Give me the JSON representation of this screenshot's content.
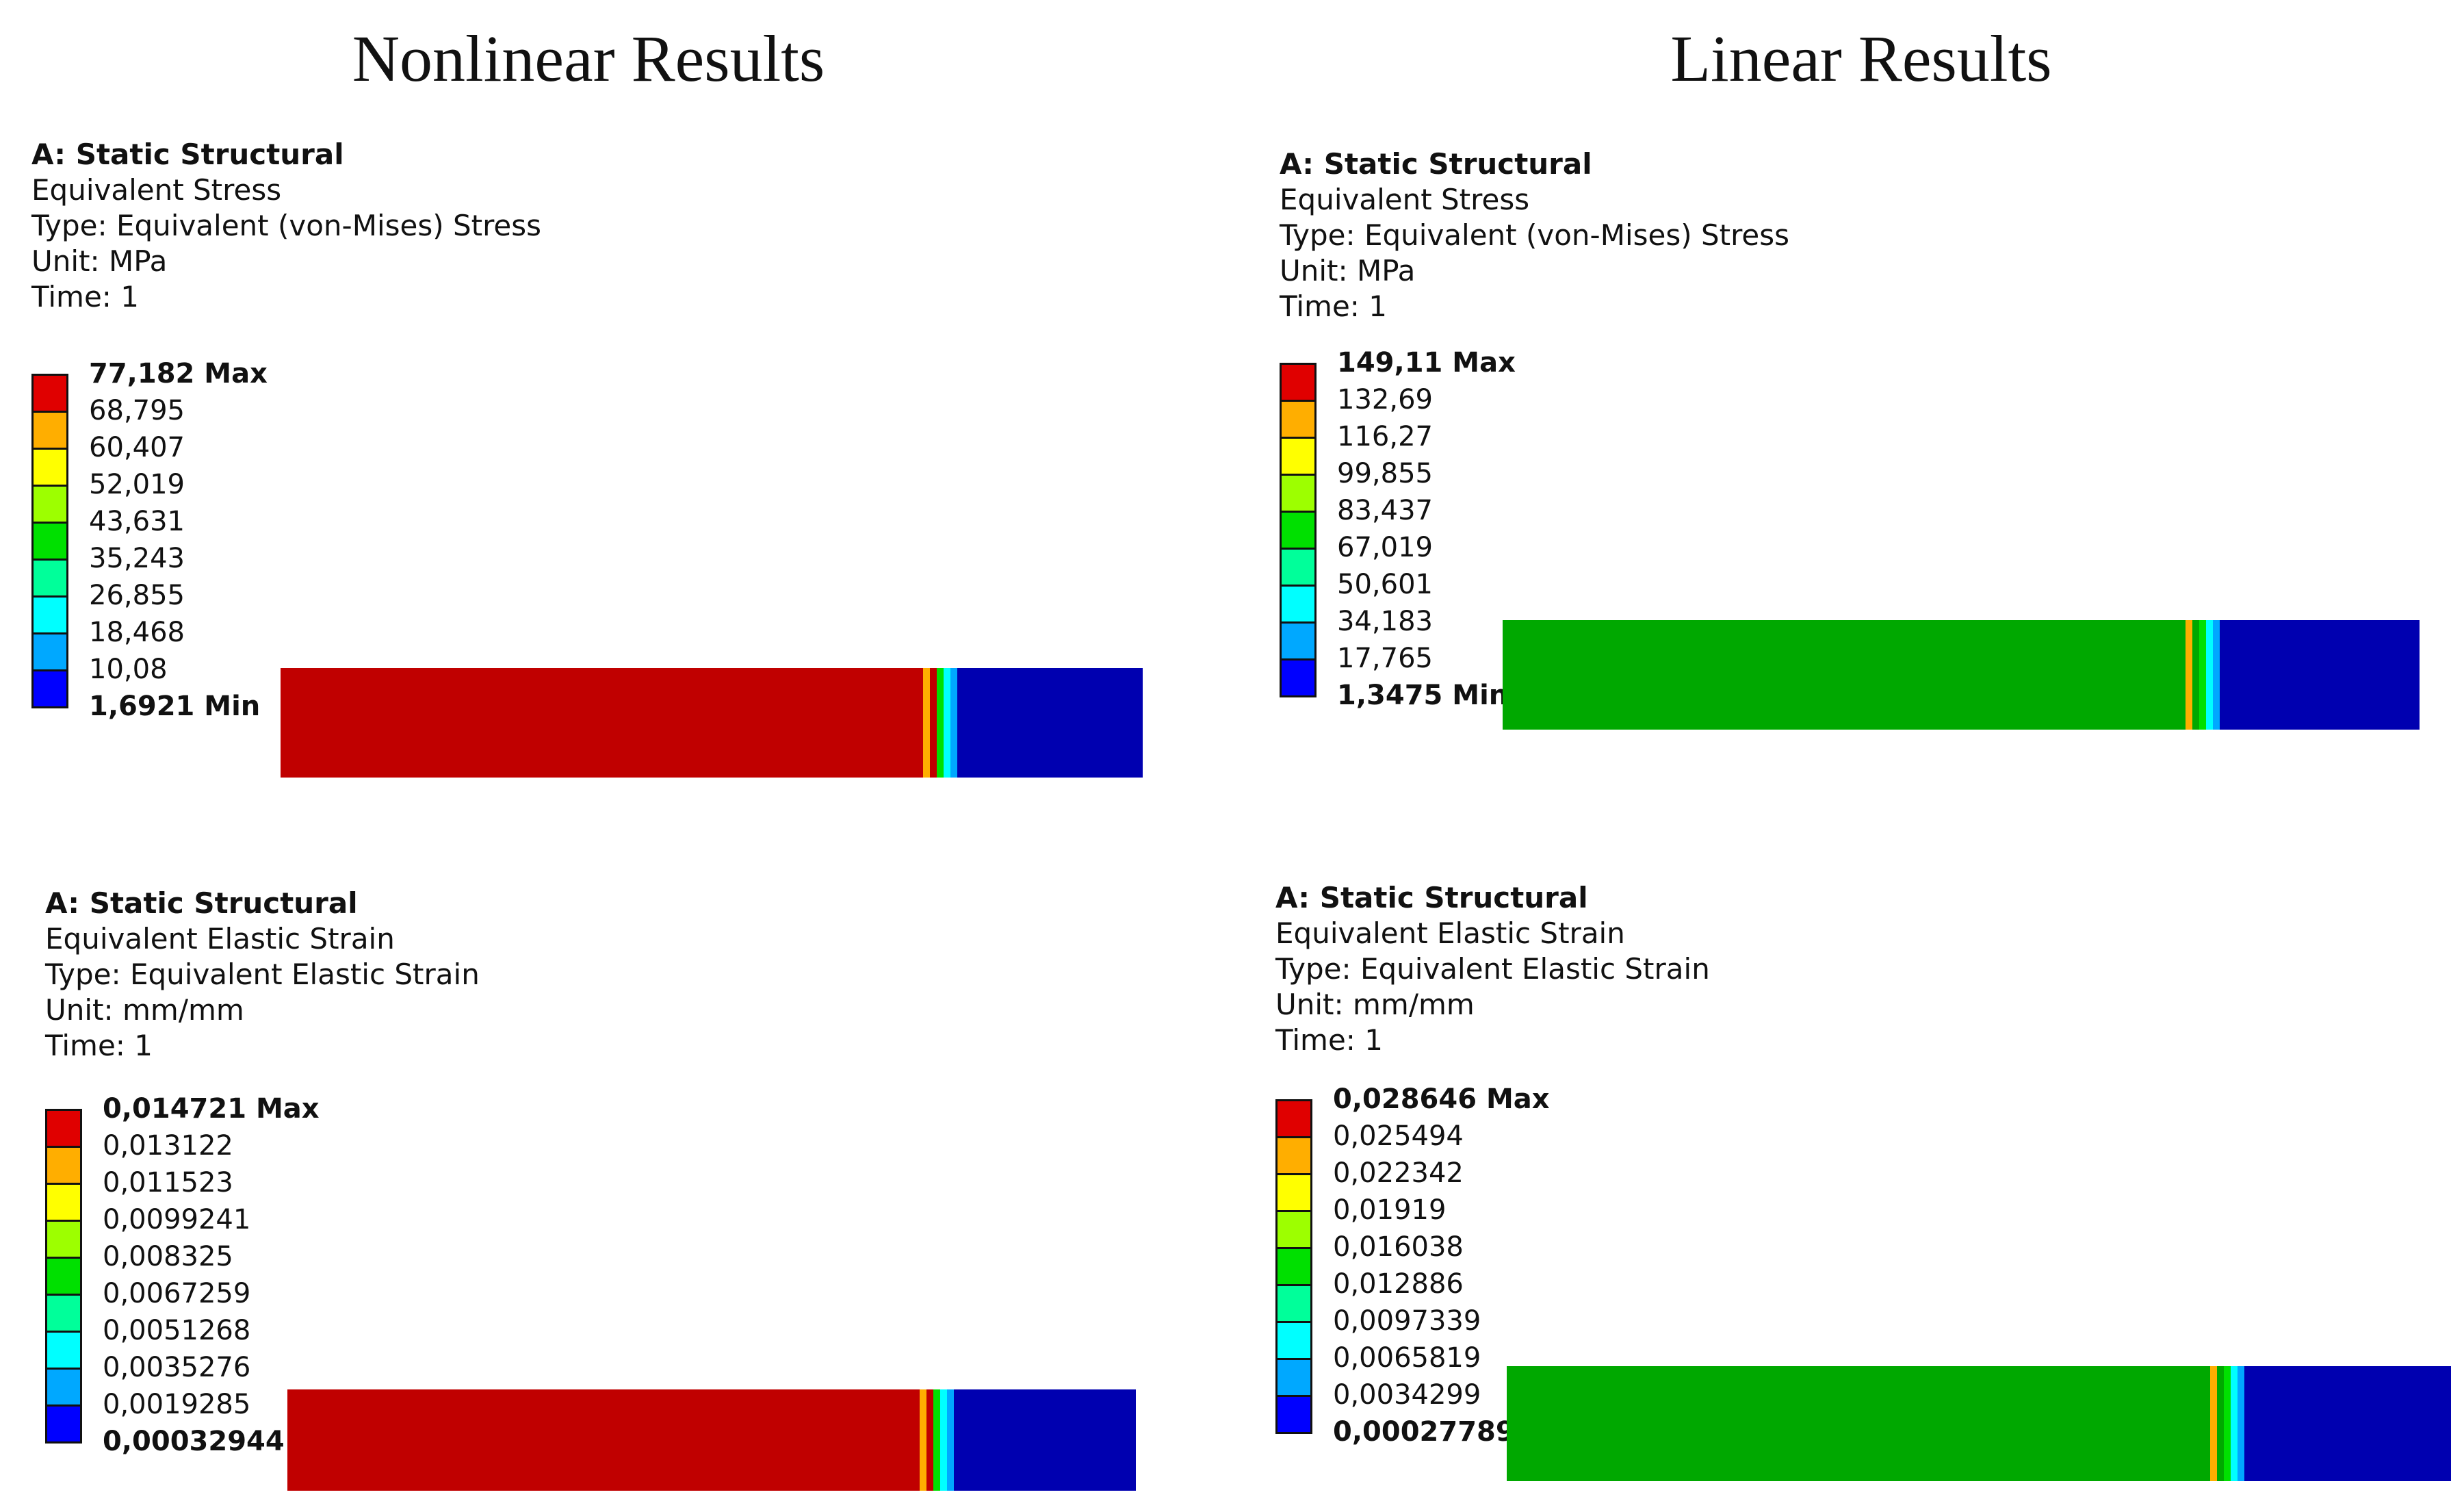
{
  "titles": {
    "left": "Nonlinear Results",
    "right": "Linear Results"
  },
  "legend_colors": [
    "#e00000",
    "#ffae00",
    "#ffff00",
    "#9dff00",
    "#00e000",
    "#00ff9a",
    "#00ffff",
    "#00a8ff",
    "#0000ff"
  ],
  "colors": {
    "nl_body": "#c00000",
    "lin_body": "#00a800",
    "cold_end": "#0000b0"
  },
  "panels": [
    {
      "header": [
        "A: Static Structural",
        "Equivalent Stress",
        "Type: Equivalent (von-Mises) Stress",
        "Unit: MPa",
        "Time: 1"
      ],
      "labels": [
        "77,182 Max",
        "68,795",
        "60,407",
        "52,019",
        "43,631",
        "35,243",
        "26,855",
        "18,468",
        "10,08",
        "1,6921 Min"
      ],
      "body": "nl"
    },
    {
      "header": [
        "A: Static Structural",
        "Equivalent Stress",
        "Type: Equivalent (von-Mises) Stress",
        "Unit: MPa",
        "Time: 1"
      ],
      "labels": [
        "149,11 Max",
        "132,69",
        "116,27",
        "99,855",
        "83,437",
        "67,019",
        "50,601",
        "34,183",
        "17,765",
        "1,3475 Min"
      ],
      "body": "lin"
    },
    {
      "header": [
        "A: Static Structural",
        "Equivalent Elastic Strain",
        "Type: Equivalent Elastic Strain",
        "Unit: mm/mm",
        "Time: 1"
      ],
      "labels": [
        "0,014721 Max",
        "0,013122",
        "0,011523",
        "0,0099241",
        "0,008325",
        "0,0067259",
        "0,0051268",
        "0,0035276",
        "0,0019285",
        "0,00032944 Min"
      ],
      "body": "nl"
    },
    {
      "header": [
        "A: Static Structural",
        "Equivalent Elastic Strain",
        "Type: Equivalent Elastic Strain",
        "Unit: mm/mm",
        "Time: 1"
      ],
      "labels": [
        "0,028646 Max",
        "0,025494",
        "0,022342",
        "0,01919",
        "0,016038",
        "0,012886",
        "0,0097339",
        "0,0065819",
        "0,0034299",
        "0,00027789 Min"
      ],
      "body": "lin"
    }
  ]
}
